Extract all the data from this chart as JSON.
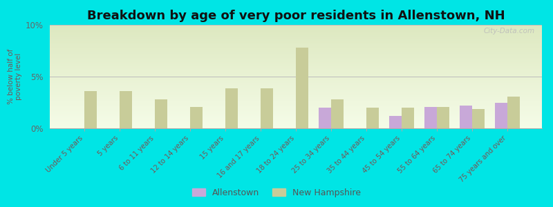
{
  "title": "Breakdown by age of very poor residents in Allenstown, NH",
  "ylabel": "% below half of\npoverty level",
  "categories": [
    "Under 5 years",
    "5 years",
    "6 to 11 years",
    "12 to 14 years",
    "15 years",
    "16 and 17 years",
    "18 to 24 years",
    "25 to 34 years",
    "35 to 44 years",
    "45 to 54 years",
    "55 to 64 years",
    "65 to 74 years",
    "75 years and over"
  ],
  "allenstown": [
    0,
    0,
    0,
    0,
    0,
    0,
    0,
    2.0,
    0,
    1.2,
    2.1,
    2.2,
    2.5
  ],
  "new_hampshire": [
    3.6,
    3.6,
    2.8,
    2.1,
    3.9,
    3.9,
    7.8,
    2.8,
    2.0,
    2.0,
    2.1,
    1.9,
    3.1
  ],
  "allenstown_color": "#c8a8d8",
  "nh_color": "#c8cc99",
  "background_outer": "#00e5e5",
  "background_plot_top": "#dde8c0",
  "background_plot_bottom": "#f5fce8",
  "ylim": [
    0,
    10
  ],
  "yticks": [
    0,
    5,
    10
  ],
  "ytick_labels": [
    "0%",
    "5%",
    "10%"
  ],
  "title_fontsize": 13,
  "legend_labels": [
    "Allenstown",
    "New Hampshire"
  ],
  "watermark": "City-Data.com"
}
